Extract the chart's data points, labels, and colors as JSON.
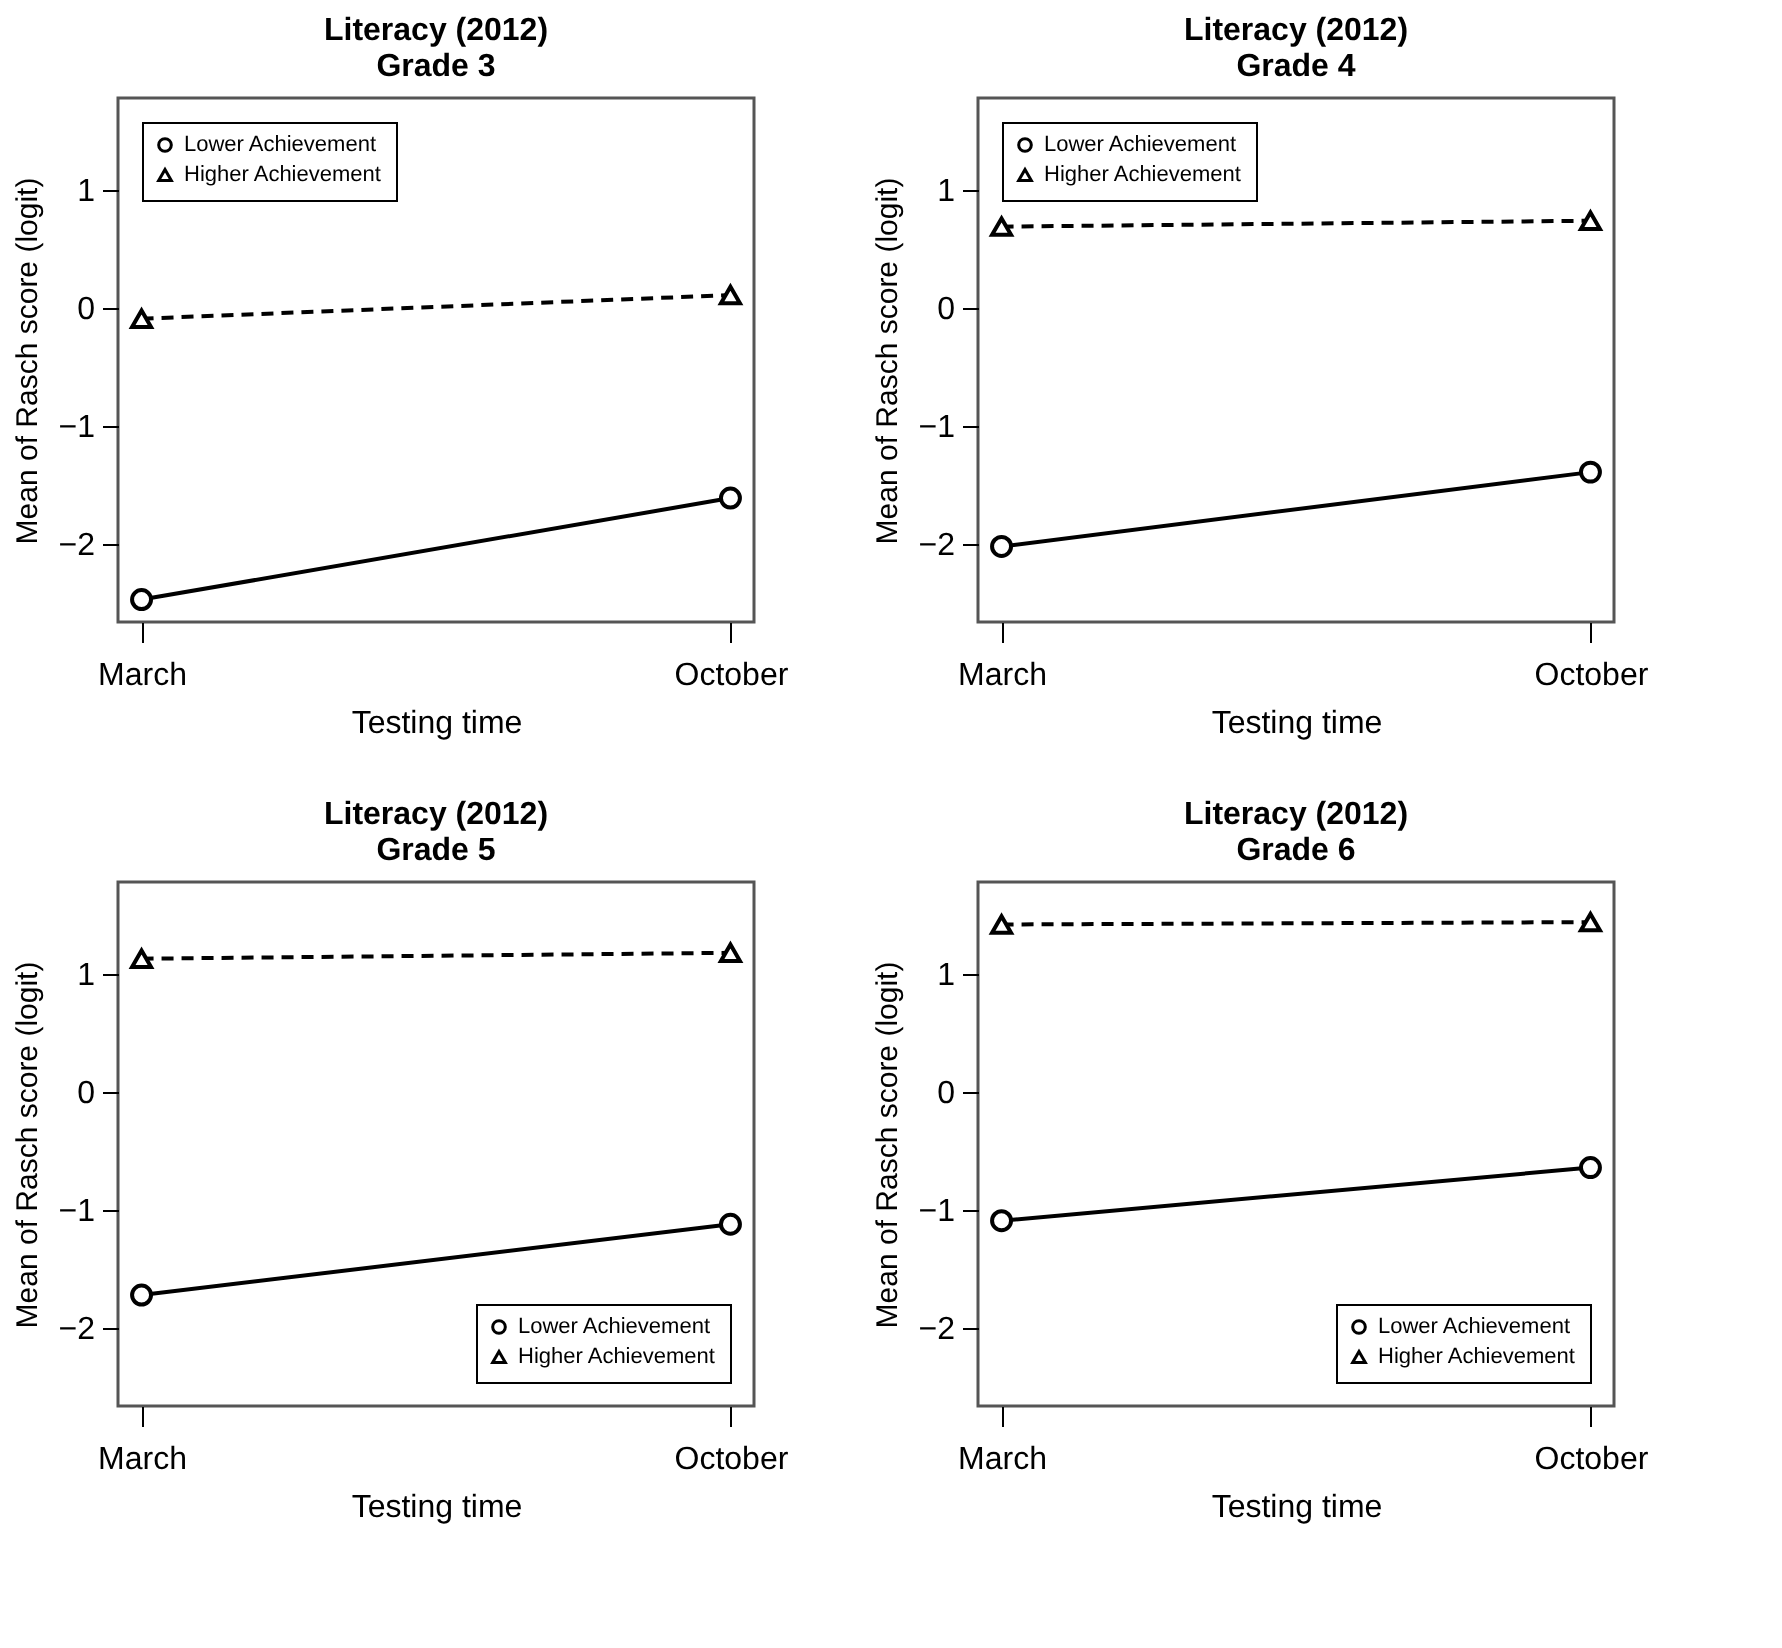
{
  "chart_data": [
    {
      "type": "line",
      "title": "Literacy (2012)",
      "subtitle": "Grade 3",
      "xlabel": "Testing time",
      "ylabel": "Mean of Rasch score (logit)",
      "categories": [
        "March",
        "October"
      ],
      "series": [
        {
          "name": "Lower Achievement",
          "color": "#000000",
          "values": [
            -2.47,
            -1.61
          ],
          "marker": "circle",
          "line_style": "solid"
        },
        {
          "name": "Higher Achievement",
          "color": "#000000",
          "values": [
            -0.09,
            0.11
          ],
          "marker": "triangle",
          "line_style": "dashed"
        }
      ],
      "ylim": [
        -2.66,
        1.78
      ],
      "yticks": [
        -2,
        -1,
        0,
        1
      ],
      "legend": "top left",
      "grid": false
    },
    {
      "type": "line",
      "title": "Literacy (2012)",
      "subtitle": "Grade 4",
      "xlabel": "Testing time",
      "ylabel": "Mean of Rasch score (logit)",
      "categories": [
        "March",
        "October"
      ],
      "series": [
        {
          "name": "Lower Achievement",
          "color": "#000000",
          "values": [
            -2.02,
            -1.39
          ],
          "marker": "circle",
          "line_style": "solid"
        },
        {
          "name": "Higher Achievement",
          "color": "#000000",
          "values": [
            0.69,
            0.74
          ],
          "marker": "triangle",
          "line_style": "dashed"
        }
      ],
      "ylim": [
        -2.66,
        1.78
      ],
      "yticks": [
        -2,
        -1,
        0,
        1
      ],
      "legend": "top left",
      "grid": false
    },
    {
      "type": "line",
      "title": "Literacy (2012)",
      "subtitle": "Grade 5",
      "xlabel": "Testing time",
      "ylabel": "Mean of Rasch score (logit)",
      "categories": [
        "March",
        "October"
      ],
      "series": [
        {
          "name": "Lower Achievement",
          "color": "#000000",
          "values": [
            -1.72,
            -1.12
          ],
          "marker": "circle",
          "line_style": "solid"
        },
        {
          "name": "Higher Achievement",
          "color": "#000000",
          "values": [
            1.13,
            1.18
          ],
          "marker": "triangle",
          "line_style": "dashed"
        }
      ],
      "ylim": [
        -2.66,
        1.78
      ],
      "yticks": [
        -2,
        -1,
        0,
        1
      ],
      "legend": "bottom right",
      "grid": false
    },
    {
      "type": "line",
      "title": "Literacy (2012)",
      "subtitle": "Grade 6",
      "xlabel": "Testing time",
      "ylabel": "Mean of Rasch score (logit)",
      "categories": [
        "March",
        "October"
      ],
      "series": [
        {
          "name": "Lower Achievement",
          "color": "#000000",
          "values": [
            -1.09,
            -0.64
          ],
          "marker": "circle",
          "line_style": "solid"
        },
        {
          "name": "Higher Achievement",
          "color": "#000000",
          "values": [
            1.42,
            1.44
          ],
          "marker": "triangle",
          "line_style": "dashed"
        }
      ],
      "ylim": [
        -2.66,
        1.78
      ],
      "yticks": [
        -2,
        -1,
        0,
        1
      ],
      "legend": "bottom right",
      "grid": false
    }
  ]
}
